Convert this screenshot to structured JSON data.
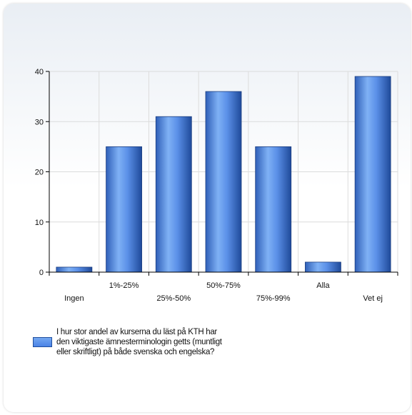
{
  "chart_data": {
    "type": "bar",
    "categories": [
      "Ingen",
      "1%-25%",
      "25%-50%",
      "50%-75%",
      "75%-99%",
      "Alla",
      "Vet ej"
    ],
    "values": [
      1,
      25,
      31,
      36,
      25,
      2,
      39
    ],
    "ylim": [
      0,
      40
    ],
    "yticks": [
      0,
      10,
      20,
      30,
      40
    ],
    "grid": true,
    "legend_position": "bottom-left",
    "series": [
      {
        "name": "I hur stor andel av kurserna du läst på KTH har den viktigaste ämnesterminologin getts (muntligt eller skriftligt) på både svenska och engelska?",
        "values": [
          1,
          25,
          31,
          36,
          25,
          2,
          39
        ],
        "color": "#4a82e6"
      }
    ]
  }
}
